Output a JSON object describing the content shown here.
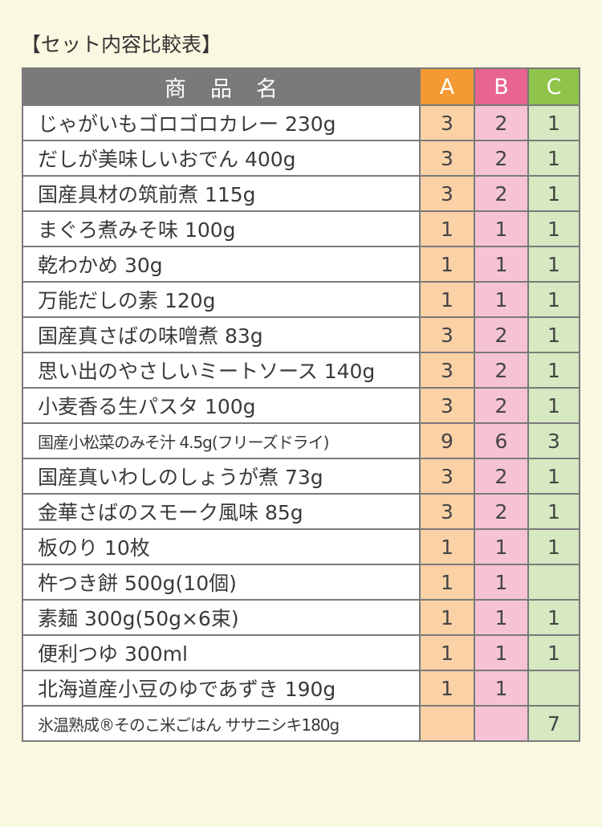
{
  "title": "【セット内容比較表】",
  "header": {
    "name": "商品名",
    "a": "A",
    "b": "B",
    "c": "C"
  },
  "colors": {
    "a": "#f39a33",
    "b": "#e7658f",
    "c": "#8fc34a",
    "header": "#7b7a7a"
  },
  "rows": [
    {
      "name": "じゃがいもゴロゴロカレー 230g",
      "a": "3",
      "b": "2",
      "c": "1"
    },
    {
      "name": "だしが美味しいおでん 400g",
      "a": "3",
      "b": "2",
      "c": "1"
    },
    {
      "name": "国産具材の筑前煮 115g",
      "a": "3",
      "b": "2",
      "c": "1"
    },
    {
      "name": "まぐろ煮みそ味 100g",
      "a": "1",
      "b": "1",
      "c": "1"
    },
    {
      "name": "乾わかめ 30g",
      "a": "1",
      "b": "1",
      "c": "1"
    },
    {
      "name": "万能だしの素 120g",
      "a": "1",
      "b": "1",
      "c": "1"
    },
    {
      "name": "国産真さばの味噌煮 83g",
      "a": "3",
      "b": "2",
      "c": "1"
    },
    {
      "name": "思い出のやさしいミートソース 140g",
      "a": "3",
      "b": "2",
      "c": "1"
    },
    {
      "name": "小麦香る生パスタ 100g",
      "a": "3",
      "b": "2",
      "c": "1"
    },
    {
      "name": "国産小松菜のみそ汁 4.5g(フリーズドライ)",
      "a": "9",
      "b": "6",
      "c": "3",
      "size": "xsmall"
    },
    {
      "name": "国産真いわしのしょうが煮 73g",
      "a": "3",
      "b": "2",
      "c": "1"
    },
    {
      "name": "金華さばのスモーク風味 85g",
      "a": "3",
      "b": "2",
      "c": "1"
    },
    {
      "name": "板のり 10枚",
      "a": "1",
      "b": "1",
      "c": "1"
    },
    {
      "name": "杵つき餅 500g(10個)",
      "a": "1",
      "b": "1",
      "c": ""
    },
    {
      "name": "素麺 300g(50g×6束)",
      "a": "1",
      "b": "1",
      "c": "1"
    },
    {
      "name": "便利つゆ 300ml",
      "a": "1",
      "b": "1",
      "c": "1"
    },
    {
      "name": "北海道産小豆のゆであずき 190g",
      "a": "1",
      "b": "1",
      "c": ""
    },
    {
      "name": "氷温熟成®そのこ米ごはん ササニシキ180g",
      "a": "",
      "b": "",
      "c": "7",
      "size": "xsmall"
    }
  ]
}
